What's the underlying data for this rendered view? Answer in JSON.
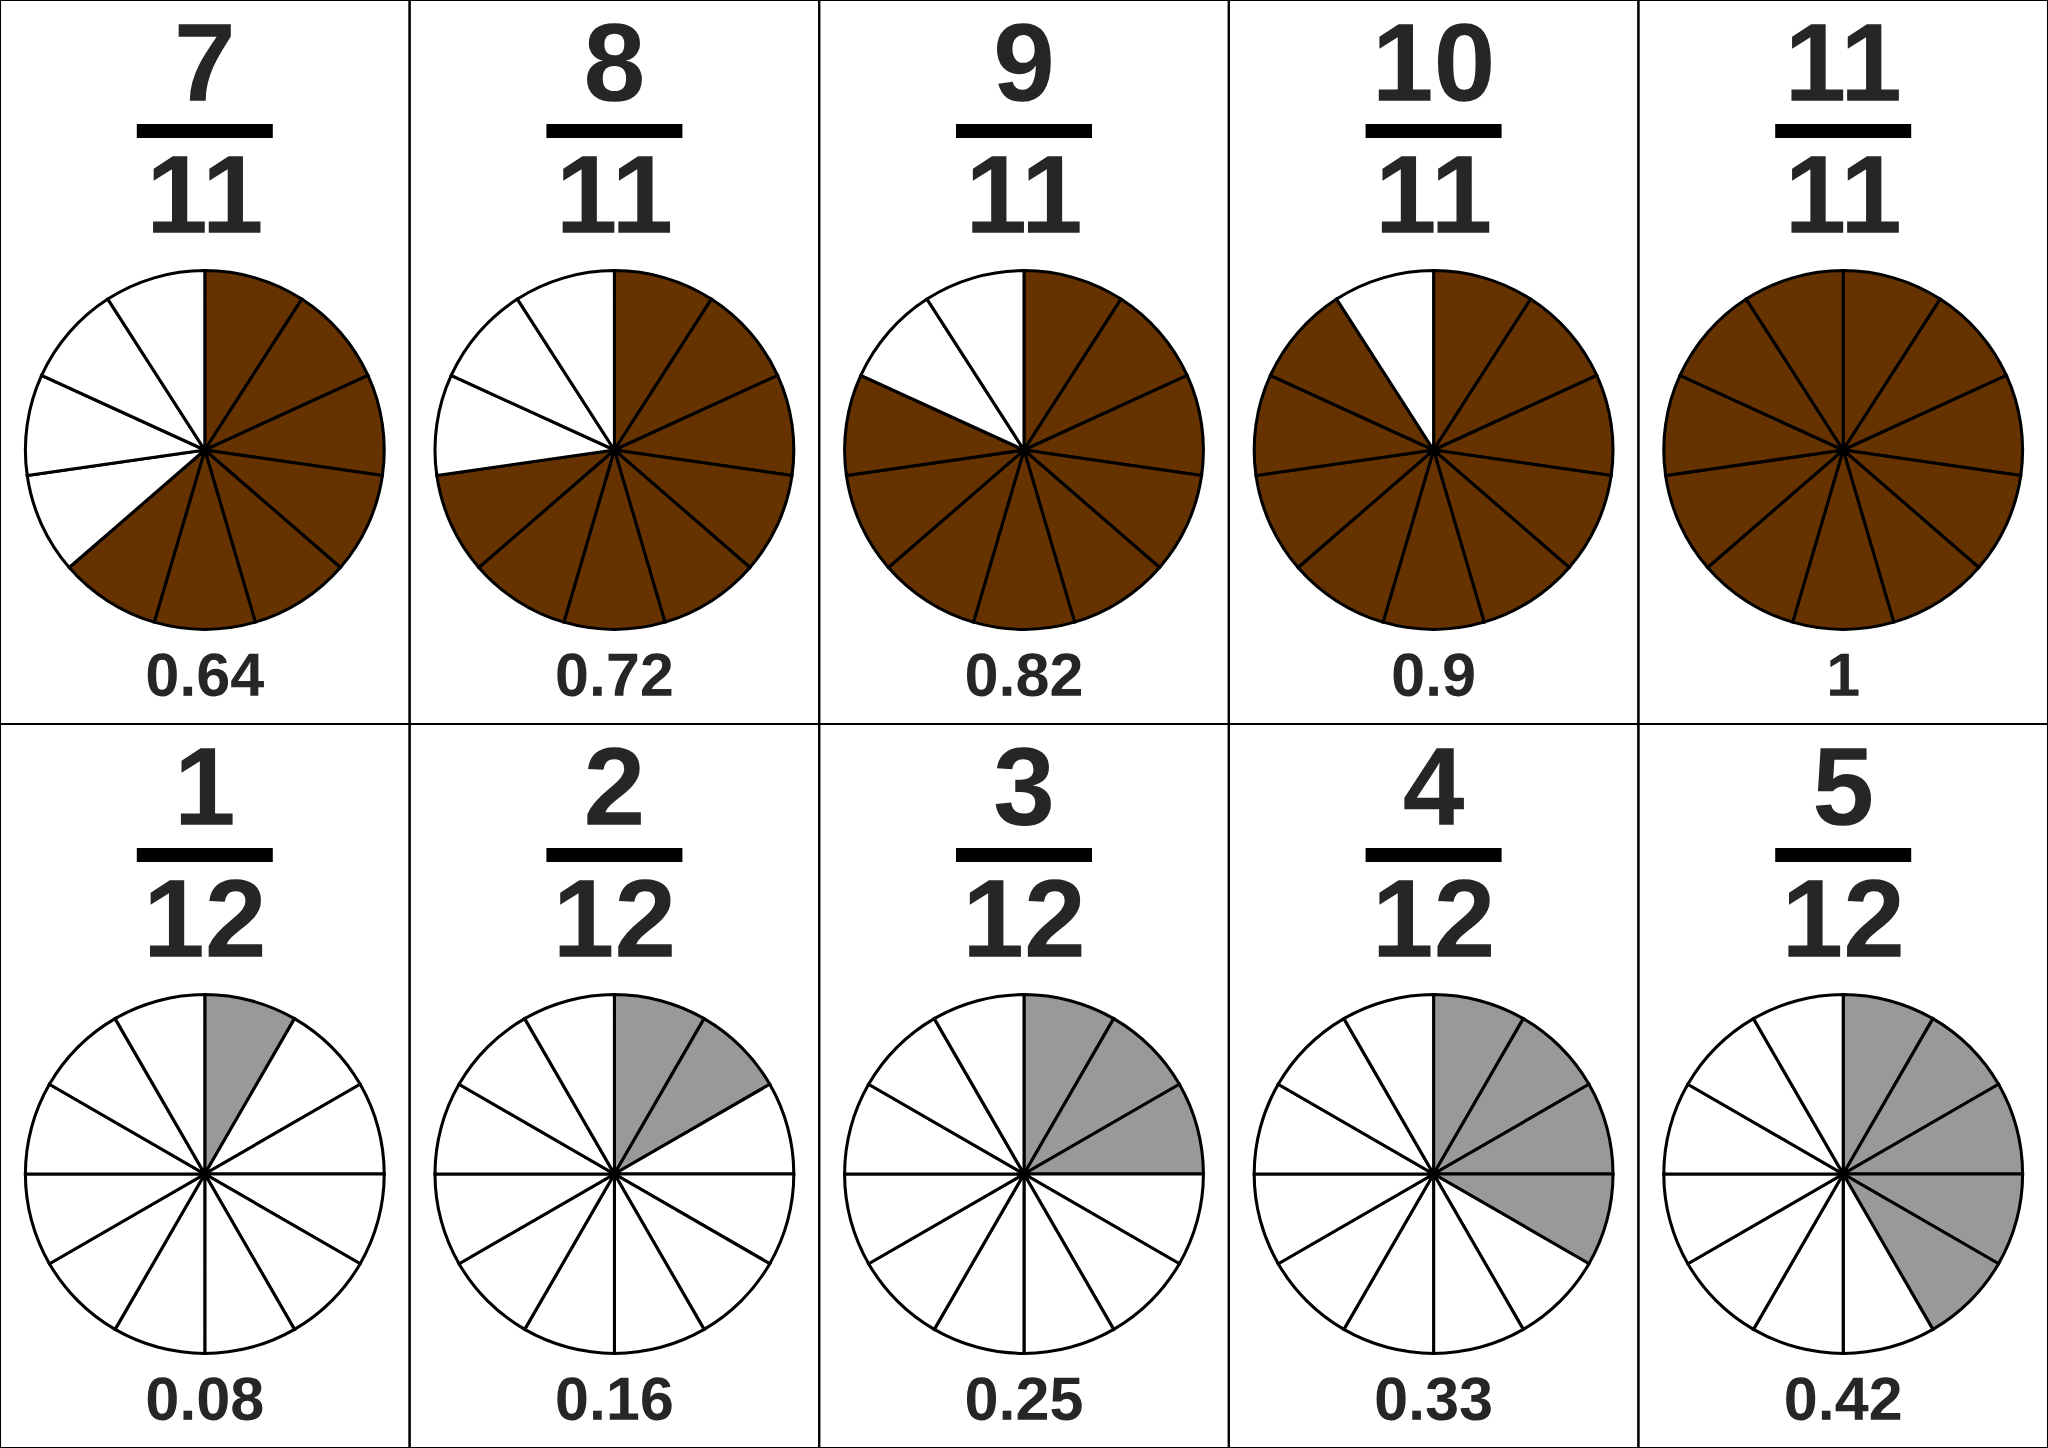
{
  "chart_data": [
    {
      "type": "pie",
      "title": "7",
      "subtitle": "11",
      "annotations": [
        "0.64"
      ],
      "categories": [
        null,
        null,
        null,
        null,
        null,
        null,
        null,
        null,
        null,
        null,
        null
      ],
      "values": [
        9.09,
        9.09,
        9.09,
        9.09,
        9.09,
        9.09,
        9.09,
        9.09,
        9.09,
        9.09,
        9.09
      ],
      "colors": [
        "#663300",
        "#663300",
        "#663300",
        "#663300",
        "#663300",
        "#663300",
        "#663300",
        "#ffffff",
        "#ffffff",
        "#ffffff",
        "#ffffff"
      ]
    },
    {
      "type": "pie",
      "title": "8",
      "subtitle": "11",
      "annotations": [
        "0.72"
      ],
      "categories": [
        null,
        null,
        null,
        null,
        null,
        null,
        null,
        null,
        null,
        null,
        null
      ],
      "values": [
        9.09,
        9.09,
        9.09,
        9.09,
        9.09,
        9.09,
        9.09,
        9.09,
        9.09,
        9.09,
        9.09
      ],
      "colors": [
        "#663300",
        "#663300",
        "#663300",
        "#663300",
        "#663300",
        "#663300",
        "#663300",
        "#663300",
        "#ffffff",
        "#ffffff",
        "#ffffff"
      ]
    },
    {
      "type": "pie",
      "title": "9",
      "subtitle": "11",
      "annotations": [
        "0.82"
      ],
      "categories": [
        null,
        null,
        null,
        null,
        null,
        null,
        null,
        null,
        null,
        null,
        null
      ],
      "values": [
        9.09,
        9.09,
        9.09,
        9.09,
        9.09,
        9.09,
        9.09,
        9.09,
        9.09,
        9.09,
        9.09
      ],
      "colors": [
        "#663300",
        "#663300",
        "#663300",
        "#663300",
        "#663300",
        "#663300",
        "#663300",
        "#663300",
        "#663300",
        "#ffffff",
        "#ffffff"
      ]
    },
    {
      "type": "pie",
      "title": "10",
      "subtitle": "11",
      "annotations": [
        "0.9"
      ],
      "categories": [
        null,
        null,
        null,
        null,
        null,
        null,
        null,
        null,
        null,
        null,
        null
      ],
      "values": [
        9.09,
        9.09,
        9.09,
        9.09,
        9.09,
        9.09,
        9.09,
        9.09,
        9.09,
        9.09,
        9.09
      ],
      "colors": [
        "#663300",
        "#663300",
        "#663300",
        "#663300",
        "#663300",
        "#663300",
        "#663300",
        "#663300",
        "#663300",
        "#663300",
        "#ffffff"
      ]
    },
    {
      "type": "pie",
      "title": "11",
      "subtitle": "11",
      "annotations": [
        "1"
      ],
      "categories": [
        null,
        null,
        null,
        null,
        null,
        null,
        null,
        null,
        null,
        null,
        null
      ],
      "values": [
        9.09,
        9.09,
        9.09,
        9.09,
        9.09,
        9.09,
        9.09,
        9.09,
        9.09,
        9.09,
        9.09
      ],
      "colors": [
        "#663300",
        "#663300",
        "#663300",
        "#663300",
        "#663300",
        "#663300",
        "#663300",
        "#663300",
        "#663300",
        "#663300",
        "#663300"
      ]
    },
    {
      "type": "pie",
      "title": "1",
      "subtitle": "12",
      "annotations": [
        "0.08"
      ],
      "categories": [
        null,
        null,
        null,
        null,
        null,
        null,
        null,
        null,
        null,
        null,
        null,
        null
      ],
      "values": [
        8.33,
        8.33,
        8.33,
        8.33,
        8.33,
        8.33,
        8.33,
        8.33,
        8.33,
        8.33,
        8.33,
        8.33
      ],
      "colors": [
        "#999999",
        "#ffffff",
        "#ffffff",
        "#ffffff",
        "#ffffff",
        "#ffffff",
        "#ffffff",
        "#ffffff",
        "#ffffff",
        "#ffffff",
        "#ffffff",
        "#ffffff"
      ]
    },
    {
      "type": "pie",
      "title": "2",
      "subtitle": "12",
      "annotations": [
        "0.16"
      ],
      "categories": [
        null,
        null,
        null,
        null,
        null,
        null,
        null,
        null,
        null,
        null,
        null,
        null
      ],
      "values": [
        8.33,
        8.33,
        8.33,
        8.33,
        8.33,
        8.33,
        8.33,
        8.33,
        8.33,
        8.33,
        8.33,
        8.33
      ],
      "colors": [
        "#999999",
        "#999999",
        "#ffffff",
        "#ffffff",
        "#ffffff",
        "#ffffff",
        "#ffffff",
        "#ffffff",
        "#ffffff",
        "#ffffff",
        "#ffffff",
        "#ffffff"
      ]
    },
    {
      "type": "pie",
      "title": "3",
      "subtitle": "12",
      "annotations": [
        "0.25"
      ],
      "categories": [
        null,
        null,
        null,
        null,
        null,
        null,
        null,
        null,
        null,
        null,
        null,
        null
      ],
      "values": [
        8.33,
        8.33,
        8.33,
        8.33,
        8.33,
        8.33,
        8.33,
        8.33,
        8.33,
        8.33,
        8.33,
        8.33
      ],
      "colors": [
        "#999999",
        "#999999",
        "#999999",
        "#ffffff",
        "#ffffff",
        "#ffffff",
        "#ffffff",
        "#ffffff",
        "#ffffff",
        "#ffffff",
        "#ffffff",
        "#ffffff"
      ]
    },
    {
      "type": "pie",
      "title": "4",
      "subtitle": "12",
      "annotations": [
        "0.33"
      ],
      "categories": [
        null,
        null,
        null,
        null,
        null,
        null,
        null,
        null,
        null,
        null,
        null,
        null
      ],
      "values": [
        8.33,
        8.33,
        8.33,
        8.33,
        8.33,
        8.33,
        8.33,
        8.33,
        8.33,
        8.33,
        8.33,
        8.33
      ],
      "colors": [
        "#999999",
        "#999999",
        "#999999",
        "#999999",
        "#ffffff",
        "#ffffff",
        "#ffffff",
        "#ffffff",
        "#ffffff",
        "#ffffff",
        "#ffffff",
        "#ffffff"
      ]
    },
    {
      "type": "pie",
      "title": "5",
      "subtitle": "12",
      "annotations": [
        "0.42"
      ],
      "categories": [
        null,
        null,
        null,
        null,
        null,
        null,
        null,
        null,
        null,
        null,
        null,
        null
      ],
      "values": [
        8.33,
        8.33,
        8.33,
        8.33,
        8.33,
        8.33,
        8.33,
        8.33,
        8.33,
        8.33,
        8.33,
        8.33
      ],
      "colors": [
        "#999999",
        "#999999",
        "#999999",
        "#999999",
        "#999999",
        "#ffffff",
        "#ffffff",
        "#ffffff",
        "#ffffff",
        "#ffffff",
        "#ffffff",
        "#ffffff"
      ]
    }
  ]
}
